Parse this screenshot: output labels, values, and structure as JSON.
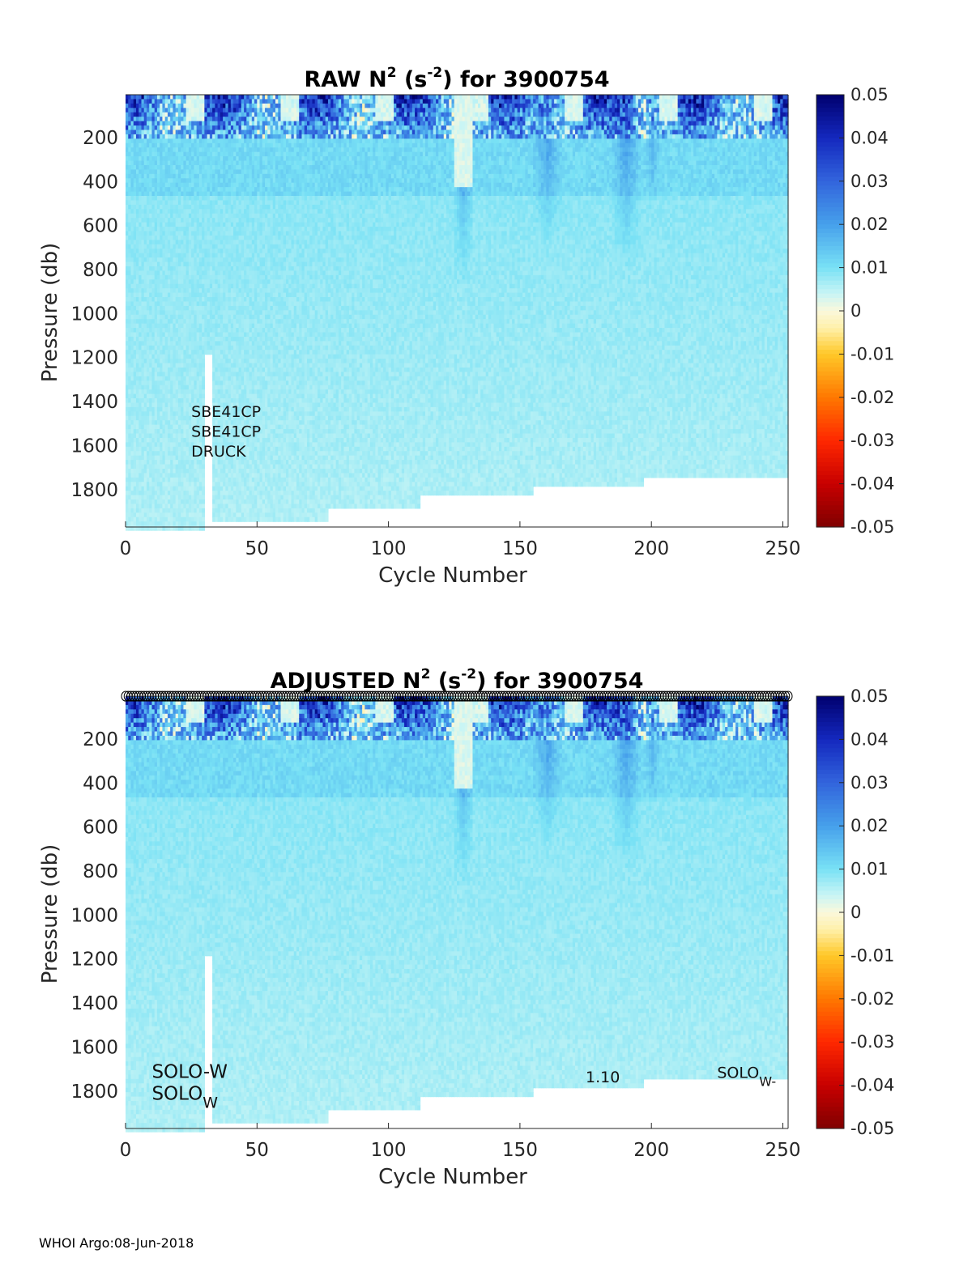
{
  "chart_data": [
    {
      "type": "heatmap",
      "title": {
        "prefix": "RAW N",
        "sup1": "2",
        "mid": " (s",
        "sup2": "-2",
        "suffix": ") for 3900754"
      },
      "xlabel": "Cycle Number",
      "ylabel": "Pressure (db)",
      "xlim": [
        0,
        252
      ],
      "ylim": [
        1970,
        5
      ],
      "xticks": [
        "0",
        "50",
        "100",
        "150",
        "200",
        "250"
      ],
      "yticks": [
        "200",
        "400",
        "600",
        "800",
        "1000",
        "1200",
        "1400",
        "1600",
        "1800"
      ],
      "colorbar": {
        "clim": [
          -0.05,
          0.05
        ],
        "ticks": [
          "0.05",
          "0.04",
          "0.03",
          "0.02",
          "0.01",
          "0",
          "-0.01",
          "-0.02",
          "-0.03",
          "-0.04",
          "-0.05"
        ]
      },
      "annotations": [
        {
          "text": "SBE41CP",
          "x": 25,
          "y": 1470
        },
        {
          "text": "SBE41CP",
          "x": 25,
          "y": 1560
        },
        {
          "text": "DRUCK",
          "x": 25,
          "y": 1650
        }
      ],
      "max_pressure_by_cycle_segment": [
        {
          "cycles": [
            0,
            30
          ],
          "max_pressure": 1970
        },
        {
          "cycles": [
            30,
            33
          ],
          "max_pressure": 1170
        },
        {
          "cycles": [
            33,
            77
          ],
          "max_pressure": 1930
        },
        {
          "cycles": [
            77,
            112
          ],
          "max_pressure": 1880
        },
        {
          "cycles": [
            112,
            155
          ],
          "max_pressure": 1820
        },
        {
          "cycles": [
            155,
            197
          ],
          "max_pressure": 1780
        },
        {
          "cycles": [
            197,
            252
          ],
          "max_pressure": 1730
        }
      ]
    },
    {
      "type": "heatmap",
      "title": {
        "prefix": "ADJUSTED N",
        "sup1": "2",
        "mid": " (s",
        "sup2": "-2",
        "suffix": ") for 3900754"
      },
      "xlabel": "Cycle Number",
      "ylabel": "Pressure (db)",
      "xlim": [
        0,
        252
      ],
      "ylim": [
        1970,
        5
      ],
      "xticks": [
        "0",
        "50",
        "100",
        "150",
        "200",
        "250"
      ],
      "yticks": [
        "200",
        "400",
        "600",
        "800",
        "1000",
        "1200",
        "1400",
        "1600",
        "1800"
      ],
      "colorbar": {
        "clim": [
          -0.05,
          0.05
        ],
        "ticks": [
          "0.05",
          "0.04",
          "0.03",
          "0.02",
          "0.01",
          "0",
          "-0.01",
          "-0.02",
          "-0.03",
          "-0.04",
          "-0.05"
        ]
      },
      "qc_markers": {
        "cycles": [
          0,
          252
        ],
        "pressure": 5
      },
      "annotations": [
        {
          "text": "SOLO-W",
          "x": 10,
          "y": 1740
        },
        {
          "text": "SOLO",
          "sub": "W",
          "x": 10,
          "y": 1840
        },
        {
          "text": "1.10",
          "x": 175,
          "y": 1760
        },
        {
          "text": "SOLO",
          "sub": "W-",
          "x": 225,
          "y": 1740
        }
      ],
      "max_pressure_by_cycle_segment": [
        {
          "cycles": [
            0,
            30
          ],
          "max_pressure": 1970
        },
        {
          "cycles": [
            30,
            33
          ],
          "max_pressure": 1170
        },
        {
          "cycles": [
            33,
            77
          ],
          "max_pressure": 1930
        },
        {
          "cycles": [
            77,
            112
          ],
          "max_pressure": 1880
        },
        {
          "cycles": [
            112,
            155
          ],
          "max_pressure": 1820
        },
        {
          "cycles": [
            155,
            197
          ],
          "max_pressure": 1780
        },
        {
          "cycles": [
            197,
            252
          ],
          "max_pressure": 1730
        }
      ]
    }
  ],
  "footer": "WHOI Argo:08-Jun-2018"
}
